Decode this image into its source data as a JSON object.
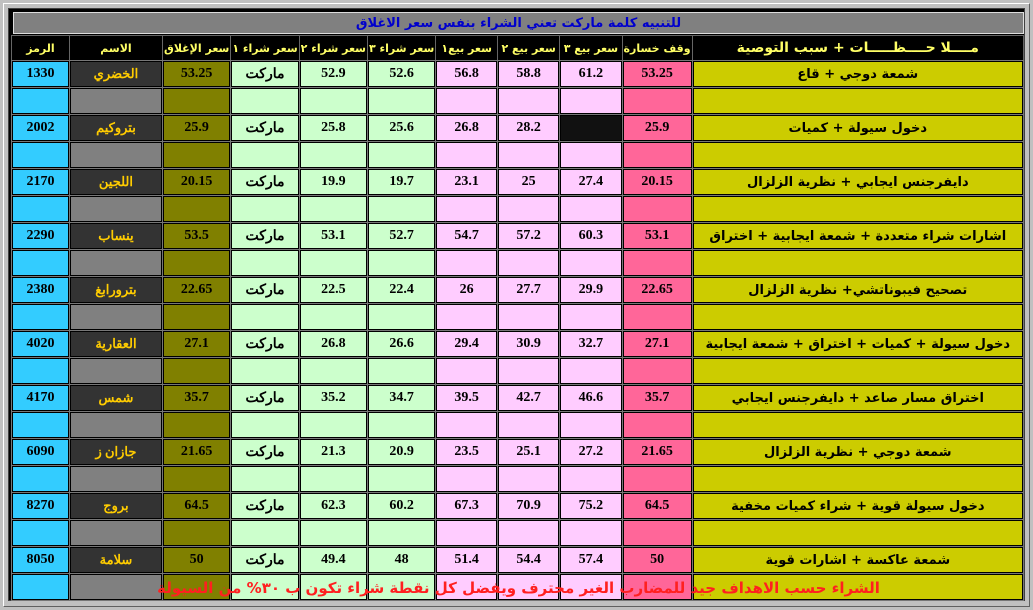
{
  "title": "للتنبيه كلمة ماركت تعني الشراء بنفس سعر الاغلاق",
  "headers": {
    "symbol": "الرمز",
    "name": "الاسم",
    "close": "سعر الإغلاق",
    "buy1": "سعر شراء ١",
    "buy2": "سعر شراء ٢",
    "buy3": "سعر شراء ٣",
    "sell1": "سعر بيع١",
    "sell2": "سعر بيع ٢",
    "sell3": "سعر بيع ٣",
    "stop": "وقف خسارة",
    "notes": "مــــلا حــــظـــــات + سبب التوصية"
  },
  "rows": [
    {
      "symbol": "1330",
      "name": "الخضري",
      "close": "53.25",
      "buy1": "ماركت",
      "buy2": "52.9",
      "buy3": "52.6",
      "sell1": "56.8",
      "sell2": "58.8",
      "sell3": "61.2",
      "stop": "53.25",
      "notes": "شمعة دوجي + قاع"
    },
    {
      "symbol": "2002",
      "name": "بتروكيم",
      "close": "25.9",
      "buy1": "ماركت",
      "buy2": "25.8",
      "buy3": "25.6",
      "sell1": "26.8",
      "sell2": "28.2",
      "sell3": "",
      "stop": "25.9",
      "notes": "دخول سيولة + كميات"
    },
    {
      "symbol": "2170",
      "name": "اللجين",
      "close": "20.15",
      "buy1": "ماركت",
      "buy2": "19.9",
      "buy3": "19.7",
      "sell1": "23.1",
      "sell2": "25",
      "sell3": "27.4",
      "stop": "20.15",
      "notes": "دايفرجنس ايجابي + نظرية الزلزال"
    },
    {
      "symbol": "2290",
      "name": "ينساب",
      "close": "53.5",
      "buy1": "ماركت",
      "buy2": "53.1",
      "buy3": "52.7",
      "sell1": "54.7",
      "sell2": "57.2",
      "sell3": "60.3",
      "stop": "53.1",
      "notes": "اشارات شراء متعددة + شمعة ايجابية + اختراق"
    },
    {
      "symbol": "2380",
      "name": "بترورابغ",
      "close": "22.65",
      "buy1": "ماركت",
      "buy2": "22.5",
      "buy3": "22.4",
      "sell1": "26",
      "sell2": "27.7",
      "sell3": "29.9",
      "stop": "22.65",
      "notes": "تصحيح فيبوناتشي+ نظرية الزلزال"
    },
    {
      "symbol": "4020",
      "name": "العقارية",
      "close": "27.1",
      "buy1": "ماركت",
      "buy2": "26.8",
      "buy3": "26.6",
      "sell1": "29.4",
      "sell2": "30.9",
      "sell3": "32.7",
      "stop": "27.1",
      "notes": "دخول سيولة + كميات + اختراق + شمعة ايجابية"
    },
    {
      "symbol": "4170",
      "name": "شمس",
      "close": "35.7",
      "buy1": "ماركت",
      "buy2": "35.2",
      "buy3": "34.7",
      "sell1": "39.5",
      "sell2": "42.7",
      "sell3": "46.6",
      "stop": "35.7",
      "notes": "اختراق مسار صاعد + دايفرجنس ايجابي"
    },
    {
      "symbol": "6090",
      "name": "جازان ز",
      "close": "21.65",
      "buy1": "ماركت",
      "buy2": "21.3",
      "buy3": "20.9",
      "sell1": "23.5",
      "sell2": "25.1",
      "sell3": "27.2",
      "stop": "21.65",
      "notes": "شمعة دوجي + نظرية الزلزال"
    },
    {
      "symbol": "8270",
      "name": "بروج",
      "close": "64.5",
      "buy1": "ماركت",
      "buy2": "62.3",
      "buy3": "60.2",
      "sell1": "67.3",
      "sell2": "70.9",
      "sell3": "75.2",
      "stop": "64.5",
      "notes": "دخول سيولة قوية + شراء كميات مخفية"
    },
    {
      "symbol": "8050",
      "name": "سلامة",
      "close": "50",
      "buy1": "ماركت",
      "buy2": "49.4",
      "buy3": "48",
      "sell1": "51.4",
      "sell2": "54.4",
      "sell3": "57.4",
      "stop": "50",
      "notes": "شمعة عاكسة + اشارات قوية"
    }
  ],
  "footer": "الشراء حسب الاهداف جيد للمضارب الغير محترف ويفضل كل نقطة شراء تكون ب ٣٠% من السيولة"
}
